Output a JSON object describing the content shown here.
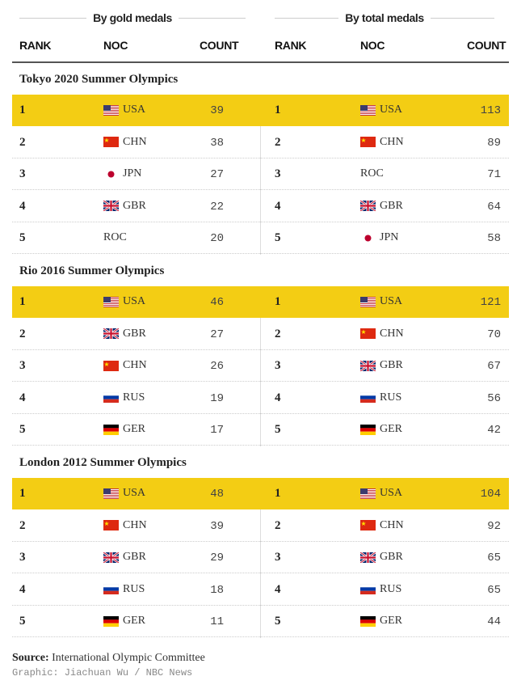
{
  "header": {
    "group_gold": "By gold medals",
    "group_total": "By total medals",
    "col_rank": "RANK",
    "col_noc": "NOC",
    "col_count": "COUNT"
  },
  "colors": {
    "highlight": "#f3cd14"
  },
  "chart_data": {
    "type": "table",
    "columns": [
      "RANK",
      "NOC",
      "COUNT"
    ],
    "sections": [
      {
        "title": "Tokyo 2020 Summer Olympics",
        "gold": [
          {
            "rank": "1",
            "noc": "USA",
            "count": "39"
          },
          {
            "rank": "2",
            "noc": "CHN",
            "count": "38"
          },
          {
            "rank": "3",
            "noc": "JPN",
            "count": "27"
          },
          {
            "rank": "4",
            "noc": "GBR",
            "count": "22"
          },
          {
            "rank": "5",
            "noc": "ROC",
            "count": "20"
          }
        ],
        "total": [
          {
            "rank": "1",
            "noc": "USA",
            "count": "113"
          },
          {
            "rank": "2",
            "noc": "CHN",
            "count": "89"
          },
          {
            "rank": "3",
            "noc": "ROC",
            "count": "71"
          },
          {
            "rank": "4",
            "noc": "GBR",
            "count": "64"
          },
          {
            "rank": "5",
            "noc": "JPN",
            "count": "58"
          }
        ]
      },
      {
        "title": "Rio 2016 Summer Olympics",
        "gold": [
          {
            "rank": "1",
            "noc": "USA",
            "count": "46"
          },
          {
            "rank": "2",
            "noc": "GBR",
            "count": "27"
          },
          {
            "rank": "3",
            "noc": "CHN",
            "count": "26"
          },
          {
            "rank": "4",
            "noc": "RUS",
            "count": "19"
          },
          {
            "rank": "5",
            "noc": "GER",
            "count": "17"
          }
        ],
        "total": [
          {
            "rank": "1",
            "noc": "USA",
            "count": "121"
          },
          {
            "rank": "2",
            "noc": "CHN",
            "count": "70"
          },
          {
            "rank": "3",
            "noc": "GBR",
            "count": "67"
          },
          {
            "rank": "4",
            "noc": "RUS",
            "count": "56"
          },
          {
            "rank": "5",
            "noc": "GER",
            "count": "42"
          }
        ]
      },
      {
        "title": "London 2012 Summer Olympics",
        "gold": [
          {
            "rank": "1",
            "noc": "USA",
            "count": "48"
          },
          {
            "rank": "2",
            "noc": "CHN",
            "count": "39"
          },
          {
            "rank": "3",
            "noc": "GBR",
            "count": "29"
          },
          {
            "rank": "4",
            "noc": "RUS",
            "count": "18"
          },
          {
            "rank": "5",
            "noc": "GER",
            "count": "11"
          }
        ],
        "total": [
          {
            "rank": "1",
            "noc": "USA",
            "count": "104"
          },
          {
            "rank": "2",
            "noc": "CHN",
            "count": "92"
          },
          {
            "rank": "3",
            "noc": "GBR",
            "count": "65"
          },
          {
            "rank": "4",
            "noc": "RUS",
            "count": "65"
          },
          {
            "rank": "5",
            "noc": "GER",
            "count": "44"
          }
        ]
      }
    ]
  },
  "footer": {
    "source_label": "Source:",
    "source_text": " International Olympic Committee",
    "credit": "Graphic: Jiachuan Wu / NBC News"
  }
}
